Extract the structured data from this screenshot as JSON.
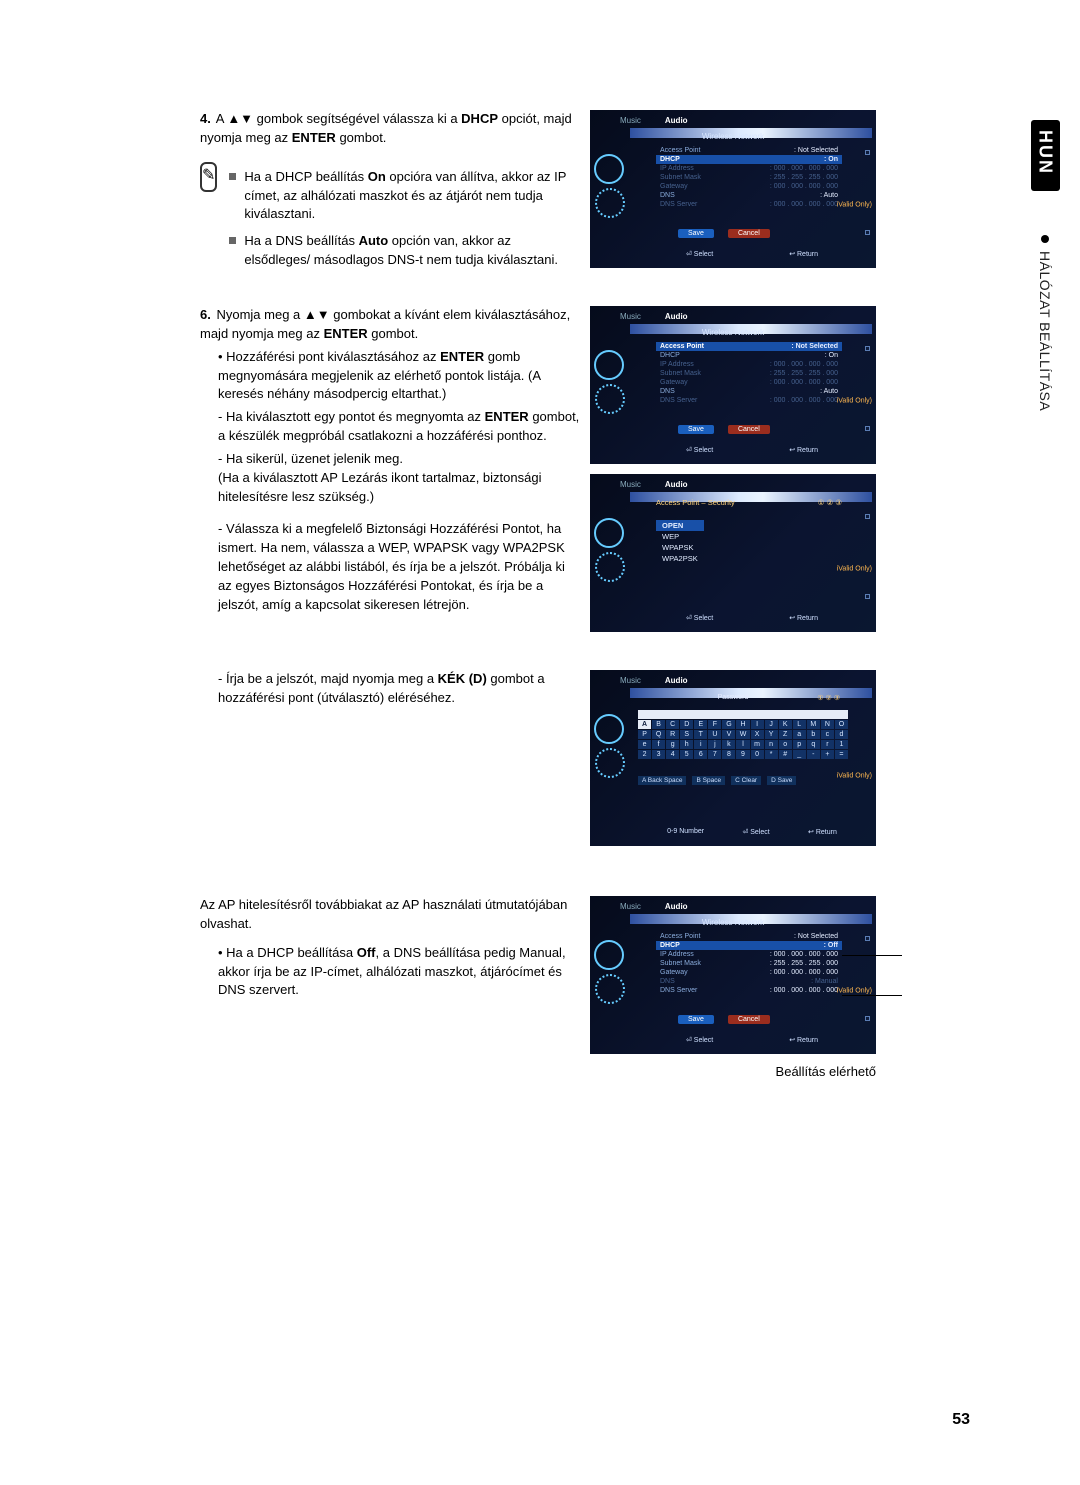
{
  "side": {
    "lang": "HUN",
    "section": "HÁLÓZAT BEÁLLÍTÁSA"
  },
  "page_number": "53",
  "step4": {
    "num": "4.",
    "line": "A ▲▼ gombok segítségével válassza ki a ",
    "bold1": "DHCP",
    "line2": " opciót, majd nyomja meg az ",
    "bold2": "ENTER",
    "line3": " gombot."
  },
  "note4": {
    "li1a": "Ha a DHCP beállítás ",
    "li1b": "On",
    "li1c": " opcióra van állítva, akkor az IP címet, az alhálózati maszkot és az átjárót nem tudja kiválasztani.",
    "li2a": "Ha a DNS beállítás ",
    "li2b": "Auto",
    "li2c": " opción van, akkor az elsődleges/ másodlagos DNS-t nem tudja kiválasztani."
  },
  "step6": {
    "num": "6.",
    "l1a": "Nyomja meg a ▲▼ gombokat a kívánt elem kiválasztásához, majd nyomja meg az ",
    "l1b": "ENTER",
    "l1c": " gombot.",
    "b1a": "Hozzáférési pont kiválasztásához az ",
    "b1b": "ENTER",
    "b1c": " gomb megnyomására megjelenik az elérhető pontok listája. (A keresés néhány másodpercig eltarthat.)",
    "d1a": "Ha kiválasztott egy pontot és megnyomta az ",
    "d1b": "ENTER",
    "d1c": " gombot, a készülék megpróbál csatlakozni a hozzáférési ponthoz.",
    "d2": "Ha sikerül, üzenet jelenik meg.",
    "d2p": "(Ha a kiválasztott AP Lezárás ikont tartalmaz, biztonsági hitelesítésre lesz szükség.)",
    "d3": "Válassza ki a megfelelő Biztonsági Hozzáférési Pontot, ha ismert. Ha nem, válassza a WEP, WPAPSK vagy WPA2PSK lehetőséget az alábbi listából, és írja be a jelszót. Próbálja ki az egyes Biztonságos Hozzáférési Pontokat, és írja be a jelszót, amíg a kapcsolat sikeresen létrejön.",
    "d4a": "Írja be a jelszót, majd nyomja meg a ",
    "d4b": "KÉK (D)",
    "d4c": " gombot a hozzáférési pont (útválasztó) eléréséhez."
  },
  "bottom": {
    "p1": "Az AP hitelesítésről továbbiakat az AP használati útmutatójában olvashat.",
    "b1a": "Ha a DHCP beállítása ",
    "b1b": "Off",
    "b1c": ", a DNS beállítása pedig Manual, akkor írja be az IP-címet, alhálózati maszkot, átjárócímet és DNS szervert.",
    "caption": "Beállítás elérhető"
  },
  "shot_common": {
    "tab_music": "Music",
    "tab_audio": "Audio",
    "panel_wn": "Wireless Network",
    "select": "Select",
    "return": "Return",
    "save": "Save",
    "cancel": "Cancel",
    "side_badge": "iValid Only)",
    "footer_sel": "⏎ Select",
    "footer_ret": "↩ Return",
    "footer_num": "0-9 Number"
  },
  "shot1": {
    "rows": [
      {
        "k": "Access Point",
        "v": "Not Selected",
        "dim": false,
        "hl": false
      },
      {
        "k": "DHCP",
        "v": "On",
        "dim": false,
        "hl": true
      },
      {
        "k": "IP Address",
        "v": "000 . 000 . 000 . 000",
        "dim": true,
        "hl": false
      },
      {
        "k": "Subnet Mask",
        "v": "255 . 255 . 255 . 000",
        "dim": true,
        "hl": false
      },
      {
        "k": "Gateway",
        "v": "000 . 000 . 000 . 000",
        "dim": true,
        "hl": false
      },
      {
        "k": "DNS",
        "v": "Auto",
        "dim": false,
        "hl": false
      },
      {
        "k": "DNS Server",
        "v": "000 . 000 . 000 . 000",
        "dim": true,
        "hl": false
      }
    ]
  },
  "shot2": {
    "rows": [
      {
        "k": "Access Point",
        "v": "Not Selected",
        "dim": false,
        "hl": true
      },
      {
        "k": "DHCP",
        "v": "On",
        "dim": false,
        "hl": false
      },
      {
        "k": "IP Address",
        "v": "000 . 000 . 000 . 000",
        "dim": true,
        "hl": false
      },
      {
        "k": "Subnet Mask",
        "v": "255 . 255 . 255 . 000",
        "dim": true,
        "hl": false
      },
      {
        "k": "Gateway",
        "v": "000 . 000 . 000 . 000",
        "dim": true,
        "hl": false
      },
      {
        "k": "DNS",
        "v": "Auto",
        "dim": false,
        "hl": false
      },
      {
        "k": "DNS Server",
        "v": "000 . 000 . 000 . 000",
        "dim": true,
        "hl": false
      }
    ]
  },
  "shot3": {
    "title": "Access Point – Security",
    "dots": "① ② ③",
    "items": [
      "OPEN",
      "WEP",
      "WPAPSK",
      "WPA2PSK"
    ]
  },
  "shot4": {
    "title": "Password",
    "dots": "① ② ③",
    "keys": [
      "A",
      "B",
      "C",
      "D",
      "E",
      "F",
      "G",
      "H",
      "I",
      "J",
      "K",
      "L",
      "M",
      "N",
      "O",
      "P",
      "Q",
      "R",
      "S",
      "T",
      "U",
      "V",
      "W",
      "X",
      "Y",
      "Z",
      "a",
      "b",
      "c",
      "d",
      "e",
      "f",
      "g",
      "h",
      "i",
      "j",
      "k",
      "l",
      "m",
      "n",
      "o",
      "p",
      "q",
      "r",
      "1",
      "2",
      "3",
      "4",
      "5",
      "6",
      "7",
      "8",
      "9",
      "0",
      "*",
      "#",
      "_",
      "-",
      "+",
      "="
    ],
    "legend": [
      "A Back Space",
      "B Space",
      "C Clear",
      "D Save"
    ]
  },
  "shot5": {
    "rows": [
      {
        "k": "Access Point",
        "v": "Not Selected",
        "dim": false,
        "hl": false
      },
      {
        "k": "DHCP",
        "v": "Off",
        "dim": false,
        "hl": true
      },
      {
        "k": "IP Address",
        "v": "000 . 000 . 000 . 000",
        "dim": false,
        "hl": false
      },
      {
        "k": "Subnet Mask",
        "v": "255 . 255 . 255 . 000",
        "dim": false,
        "hl": false
      },
      {
        "k": "Gateway",
        "v": "000 . 000 . 000 . 000",
        "dim": false,
        "hl": false
      },
      {
        "k": "DNS",
        "v": "Manual",
        "dim": true,
        "hl": false
      },
      {
        "k": "DNS Server",
        "v": "000 . 000 . 000 . 000",
        "dim": false,
        "hl": false
      }
    ]
  }
}
